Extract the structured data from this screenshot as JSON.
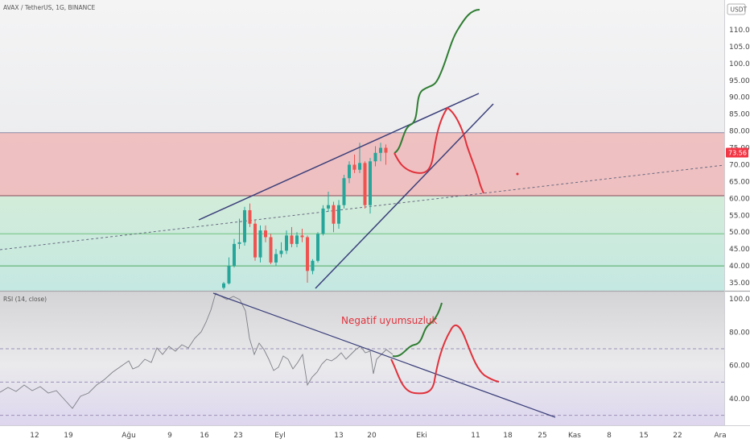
{
  "header": {
    "symbol": "AVAX / TetherUS, 1G, BINANCE",
    "currency_badge": "USDT"
  },
  "rsi_header": "RSI (14, close)",
  "annotation": "Negatif uyumsuzluk",
  "last_price_label": "73.56",
  "colors": {
    "up_candle": "#26a69a",
    "down_candle": "#ef5350",
    "resistance_zone": "#f0b8b8",
    "support_zone": "#cfead7",
    "bullish_path": "#2e7d32",
    "bearish_path": "#e0313b",
    "trendline": "#3a3f7a",
    "price_badge": "#f23645"
  },
  "chart_data": [
    {
      "type": "candlestick",
      "name": "price",
      "y_ticks": [
        "110.00",
        "105.00",
        "100.00",
        "95.00",
        "90.00",
        "85.00",
        "80.00",
        "75.00",
        "70.00",
        "65.00",
        "60.00",
        "55.00",
        "50.00",
        "45.00",
        "40.00",
        "35.00"
      ],
      "ylim": [
        34,
        118
      ],
      "horizontal_levels": [
        79.5,
        60.8,
        49.5,
        40.0
      ],
      "zones": [
        {
          "from": 60.8,
          "to": 79.5,
          "kind": "resistance"
        },
        {
          "from": 34,
          "to": 60.8,
          "kind": "support"
        }
      ],
      "candles": [
        {
          "o": 33.5,
          "h": 35.2,
          "l": 33.0,
          "c": 34.8
        },
        {
          "o": 34.8,
          "h": 42.5,
          "l": 34.5,
          "c": 40.0
        },
        {
          "o": 40.0,
          "h": 48.0,
          "l": 39.5,
          "c": 46.5
        },
        {
          "o": 46.5,
          "h": 54.0,
          "l": 45.0,
          "c": 47.0
        },
        {
          "o": 47.0,
          "h": 57.5,
          "l": 46.0,
          "c": 56.5
        },
        {
          "o": 56.5,
          "h": 58.5,
          "l": 51.5,
          "c": 52.5
        },
        {
          "o": 52.5,
          "h": 53.5,
          "l": 41.5,
          "c": 42.5
        },
        {
          "o": 42.5,
          "h": 52.0,
          "l": 41.0,
          "c": 50.5
        },
        {
          "o": 50.5,
          "h": 52.0,
          "l": 47.0,
          "c": 48.5
        },
        {
          "o": 48.5,
          "h": 49.5,
          "l": 40.5,
          "c": 41.0
        },
        {
          "o": 41.0,
          "h": 45.0,
          "l": 40.0,
          "c": 43.5
        },
        {
          "o": 43.5,
          "h": 47.0,
          "l": 42.5,
          "c": 44.5
        },
        {
          "o": 44.5,
          "h": 50.5,
          "l": 43.5,
          "c": 49.0
        },
        {
          "o": 49.0,
          "h": 51.5,
          "l": 45.5,
          "c": 46.5
        },
        {
          "o": 46.5,
          "h": 50.0,
          "l": 45.5,
          "c": 49.0
        },
        {
          "o": 49.0,
          "h": 51.0,
          "l": 47.0,
          "c": 48.5
        },
        {
          "o": 48.5,
          "h": 49.0,
          "l": 35.0,
          "c": 38.5
        },
        {
          "o": 38.5,
          "h": 42.0,
          "l": 37.5,
          "c": 41.5
        },
        {
          "o": 41.5,
          "h": 50.0,
          "l": 41.0,
          "c": 49.5
        },
        {
          "o": 49.5,
          "h": 58.0,
          "l": 49.0,
          "c": 57.0
        },
        {
          "o": 57.0,
          "h": 62.0,
          "l": 56.0,
          "c": 58.0
        },
        {
          "o": 58.0,
          "h": 59.0,
          "l": 50.0,
          "c": 52.5
        },
        {
          "o": 52.5,
          "h": 59.5,
          "l": 51.0,
          "c": 58.0
        },
        {
          "o": 58.0,
          "h": 67.0,
          "l": 57.0,
          "c": 66.0
        },
        {
          "o": 66.0,
          "h": 71.0,
          "l": 64.5,
          "c": 70.0
        },
        {
          "o": 70.0,
          "h": 73.0,
          "l": 67.5,
          "c": 68.5
        },
        {
          "o": 68.5,
          "h": 76.5,
          "l": 67.5,
          "c": 70.5
        },
        {
          "o": 70.5,
          "h": 71.0,
          "l": 57.0,
          "c": 58.0
        },
        {
          "o": 58.0,
          "h": 72.0,
          "l": 55.5,
          "c": 71.0
        },
        {
          "o": 71.0,
          "h": 75.5,
          "l": 69.5,
          "c": 73.5
        },
        {
          "o": 73.5,
          "h": 76.5,
          "l": 71.0,
          "c": 75.0
        },
        {
          "o": 75.0,
          "h": 76.0,
          "l": 70.0,
          "c": 73.56
        }
      ]
    },
    {
      "type": "line",
      "name": "RSI (14, close)",
      "y_ticks": [
        "100.00",
        "80.00",
        "60.00",
        "40.00"
      ],
      "ylim": [
        27,
        102
      ],
      "levels": [
        70,
        50,
        30
      ]
    }
  ],
  "x_axis": {
    "ticks": [
      "12",
      "19",
      "Ağu",
      "9",
      "16",
      "23",
      "Eyl",
      "13",
      "20",
      "Eki",
      "11",
      "18",
      "25",
      "Kas",
      "8",
      "15",
      "22",
      "Ara"
    ]
  }
}
